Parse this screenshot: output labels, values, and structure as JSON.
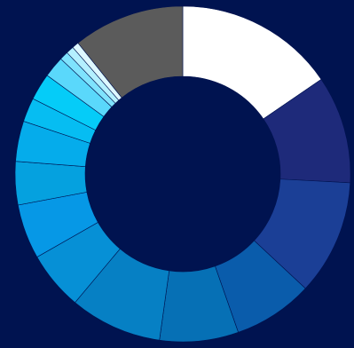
{
  "chart_data": {
    "type": "pie",
    "variant": "donut",
    "start_angle_deg": 0,
    "direction": "clockwise",
    "slices": [
      {
        "value": 16.7,
        "color": "#ffffff"
      },
      {
        "value": 11.2,
        "color": "#1e2a7a"
      },
      {
        "value": 12.0,
        "color": "#1b3f96"
      },
      {
        "value": 8.3,
        "color": "#0a5cab"
      },
      {
        "value": 8.2,
        "color": "#0670b5"
      },
      {
        "value": 9.6,
        "color": "#0680c4"
      },
      {
        "value": 6.1,
        "color": "#0690d6"
      },
      {
        "value": 5.7,
        "color": "#0698e6"
      },
      {
        "value": 4.5,
        "color": "#05a1df"
      },
      {
        "value": 4.2,
        "color": "#05aceb"
      },
      {
        "value": 2.5,
        "color": "#06bdf2"
      },
      {
        "value": 2.8,
        "color": "#05ccf8"
      },
      {
        "value": 2.2,
        "color": "#5ad8fb"
      },
      {
        "value": 0.9,
        "color": "#7fe3fd"
      },
      {
        "value": 0.8,
        "color": "#b4f0ff"
      },
      {
        "value": 0.7,
        "color": "#def8ff"
      },
      {
        "value": 11.6,
        "color": "#5b5b5b"
      }
    ]
  },
  "colors": {
    "background": "#001350",
    "hole": "#001350",
    "slice_border": "#001350"
  }
}
